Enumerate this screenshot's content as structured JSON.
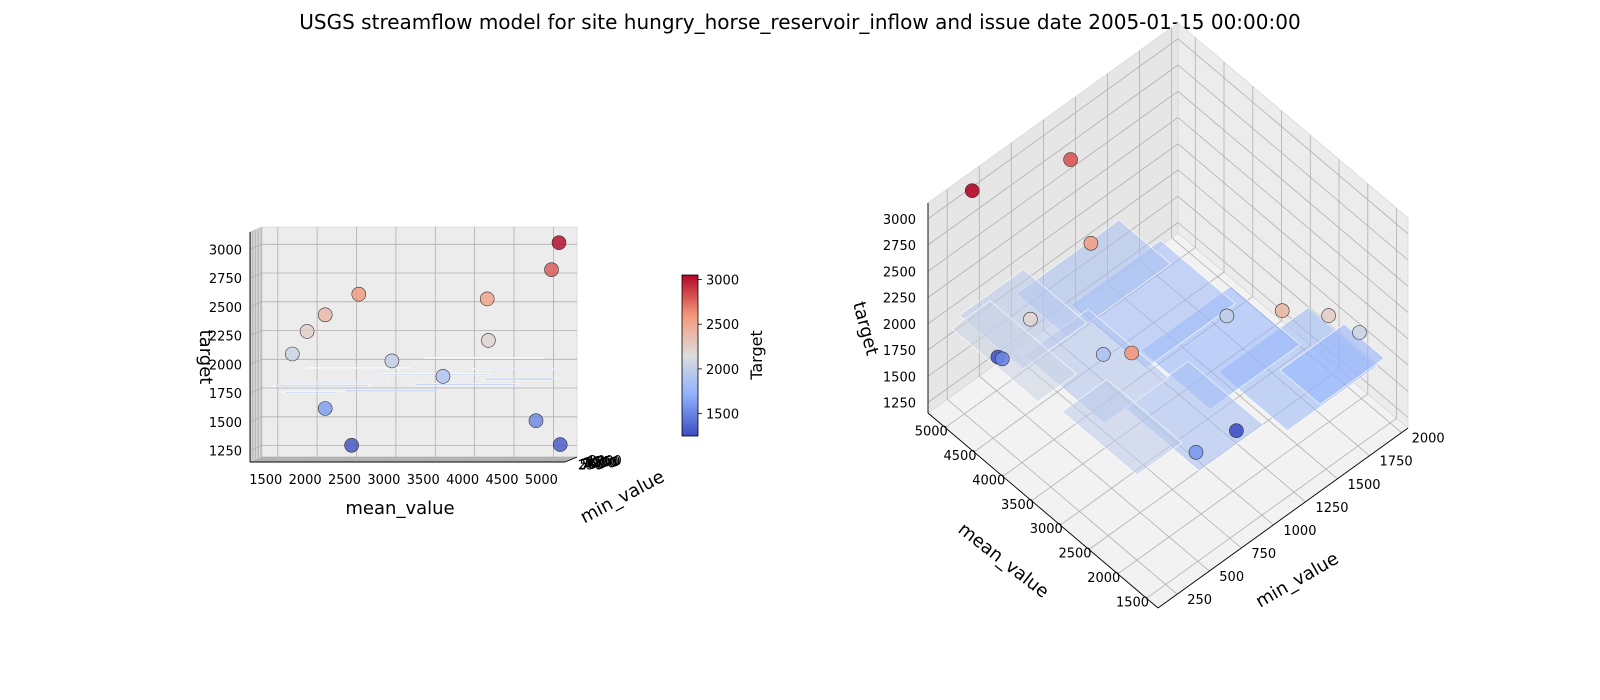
{
  "title": "USGS streamflow model for site hungry_horse_reservoir_inflow and issue date 2005-01-15 00:00:00",
  "colorbar": {
    "label": "Target",
    "ticks": [
      "1500",
      "2000",
      "2500",
      "3000"
    ],
    "range": [
      1250,
      3050
    ],
    "colormap": "coolwarm",
    "low_color": "#3b4cc0",
    "mid_color": "#dddddd",
    "high_color": "#b40426"
  },
  "chart_data": [
    {
      "type": "scatter",
      "view": "front",
      "xlabel": "mean_value",
      "ylabel": "min_value",
      "zlabel": "target",
      "xlim": [
        1300,
        5300
      ],
      "ylim": [
        100,
        2050
      ],
      "zlim": [
        1150,
        3150
      ],
      "xticks": [
        "1500",
        "2000",
        "2500",
        "3000",
        "3500",
        "4000",
        "4500",
        "5000"
      ],
      "yticks": [
        "250",
        "500",
        "750",
        "1000",
        "1250",
        "1500",
        "1750",
        "2000"
      ],
      "zticks": [
        "1250",
        "1500",
        "1750",
        "2000",
        "2250",
        "2500",
        "2750",
        "3000"
      ]
    },
    {
      "type": "scatter",
      "view": "oblique",
      "xlabel": "mean_value",
      "ylabel": "min_value",
      "zlabel": "target",
      "xlim": [
        1300,
        5300
      ],
      "ylim": [
        100,
        2050
      ],
      "zlim": [
        1150,
        3150
      ],
      "xticks": [
        "1500",
        "2000",
        "2500",
        "3000",
        "3500",
        "4000",
        "4500",
        "5000"
      ],
      "yticks": [
        "250",
        "500",
        "750",
        "1000",
        "1250",
        "1500",
        "1750",
        "2000"
      ],
      "zticks": [
        "1250",
        "1500",
        "1750",
        "2000",
        "2250",
        "2500",
        "2750",
        "3000"
      ]
    }
  ],
  "points": [
    {
      "mean": 5200,
      "min": 600,
      "target": 1290
    },
    {
      "mean": 4900,
      "min": 500,
      "target": 1500
    },
    {
      "mean": 4300,
      "min": 450,
      "target": 2200
    },
    {
      "mean": 4250,
      "min": 900,
      "target": 2550
    },
    {
      "mean": 5050,
      "min": 1100,
      "target": 2800
    },
    {
      "mean": 5200,
      "min": 400,
      "target": 3050
    },
    {
      "mean": 2500,
      "min": 1250,
      "target": 1270
    },
    {
      "mean": 2200,
      "min": 800,
      "target": 1600
    },
    {
      "mean": 1900,
      "min": 1700,
      "target": 2250
    },
    {
      "mean": 2150,
      "min": 1450,
      "target": 2400
    },
    {
      "mean": 3000,
      "min": 1400,
      "target": 2000
    },
    {
      "mean": 2650,
      "min": 500,
      "target": 2600
    },
    {
      "mean": 1700,
      "min": 1850,
      "target": 2050
    },
    {
      "mean": 3700,
      "min": 750,
      "target": 1880
    }
  ],
  "surface_patches": [
    {
      "x0": 1500,
      "x1": 2700,
      "y0": 1200,
      "y1": 1900,
      "z": 1780
    },
    {
      "x0": 2400,
      "x1": 3600,
      "y0": 1000,
      "y1": 1700,
      "z": 1740
    },
    {
      "x0": 3300,
      "x1": 4600,
      "y0": 900,
      "y1": 1600,
      "z": 1800
    },
    {
      "x0": 4200,
      "x1": 5100,
      "y0": 700,
      "y1": 1500,
      "z": 1850
    },
    {
      "x0": 1700,
      "x1": 3000,
      "y0": 600,
      "y1": 1100,
      "z": 1830
    },
    {
      "x0": 2900,
      "x1": 4300,
      "y0": 400,
      "y1": 900,
      "z": 1900
    },
    {
      "x0": 4100,
      "x1": 5200,
      "y0": 300,
      "y1": 800,
      "z": 1950
    },
    {
      "x0": 2000,
      "x1": 3300,
      "y0": 250,
      "y1": 600,
      "z": 1960
    },
    {
      "x0": 3500,
      "x1": 5000,
      "y0": 150,
      "y1": 450,
      "z": 2050
    },
    {
      "x0": 1600,
      "x1": 2300,
      "y0": 1500,
      "y1": 2000,
      "z": 1720
    }
  ]
}
